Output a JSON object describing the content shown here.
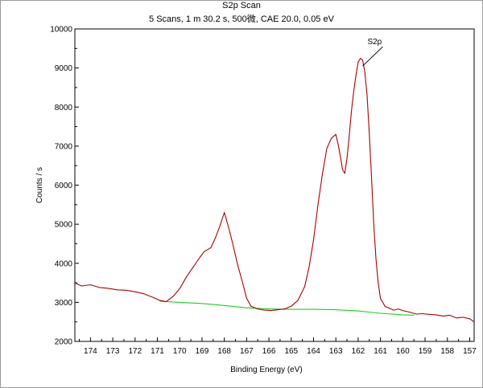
{
  "chart_data": {
    "type": "line",
    "title": "S2p Scan",
    "subtitle": "5 Scans,  1 m 30.2 s,  500微,  CAE 20.0,  0.05 eV",
    "xlabel": "Binding Energy (eV)",
    "ylabel": "Counts / s",
    "xlim": [
      174.7,
      156.8
    ],
    "ylim": [
      2000,
      10000
    ],
    "xticks": [
      174,
      173,
      172,
      171,
      170,
      169,
      168,
      167,
      166,
      165,
      164,
      163,
      162,
      161,
      160,
      159,
      158,
      157
    ],
    "yticks": [
      2000,
      3000,
      4000,
      5000,
      6000,
      7000,
      8000,
      9000,
      10000
    ],
    "annotation": {
      "label": "S2p",
      "x": 161.8,
      "y": 9050
    },
    "series": [
      {
        "color": "#aa0000",
        "x": [
          174.7,
          174.4,
          174.0,
          173.6,
          173.2,
          172.8,
          172.4,
          172.0,
          171.6,
          171.2,
          170.9,
          170.6,
          170.3,
          170.0,
          169.7,
          169.4,
          169.1,
          168.9,
          168.6,
          168.4,
          168.2,
          168.0,
          167.8,
          167.6,
          167.4,
          167.2,
          167.0,
          166.8,
          166.5,
          166.2,
          165.9,
          165.6,
          165.3,
          165.0,
          164.7,
          164.4,
          164.2,
          164.0,
          163.8,
          163.6,
          163.4,
          163.2,
          163.0,
          162.9,
          162.8,
          162.7,
          162.6,
          162.5,
          162.4,
          162.3,
          162.2,
          162.1,
          162.0,
          161.9,
          161.8,
          161.7,
          161.6,
          161.5,
          161.4,
          161.3,
          161.2,
          161.1,
          161.0,
          160.8,
          160.6,
          160.4,
          160.2,
          160.0,
          159.7,
          159.4,
          159.1,
          158.8,
          158.5,
          158.2,
          157.9,
          157.6,
          157.3,
          157.0,
          156.8
        ],
        "y": [
          3500,
          3420,
          3450,
          3380,
          3360,
          3320,
          3310,
          3270,
          3220,
          3130,
          3050,
          3020,
          3150,
          3350,
          3650,
          3900,
          4150,
          4300,
          4400,
          4650,
          4950,
          5300,
          4900,
          4450,
          3950,
          3550,
          3100,
          2900,
          2830,
          2800,
          2790,
          2810,
          2830,
          2900,
          3050,
          3400,
          3900,
          4600,
          5500,
          6300,
          6950,
          7200,
          7300,
          7050,
          6750,
          6400,
          6300,
          6700,
          7250,
          7900,
          8400,
          8800,
          9150,
          9250,
          9200,
          8900,
          8300,
          7300,
          6200,
          5000,
          4100,
          3500,
          3100,
          2900,
          2850,
          2800,
          2830,
          2790,
          2750,
          2700,
          2710,
          2690,
          2680,
          2650,
          2670,
          2600,
          2620,
          2580,
          2500
        ]
      },
      {
        "color": "#22cc22",
        "x": [
          170.9,
          170.0,
          169.0,
          168.0,
          167.0,
          166.0,
          165.0,
          164.0,
          163.0,
          162.0,
          161.0,
          160.0,
          159.5
        ],
        "y": [
          3030,
          3000,
          2970,
          2920,
          2860,
          2830,
          2820,
          2820,
          2810,
          2780,
          2720,
          2680,
          2670
        ]
      }
    ]
  }
}
